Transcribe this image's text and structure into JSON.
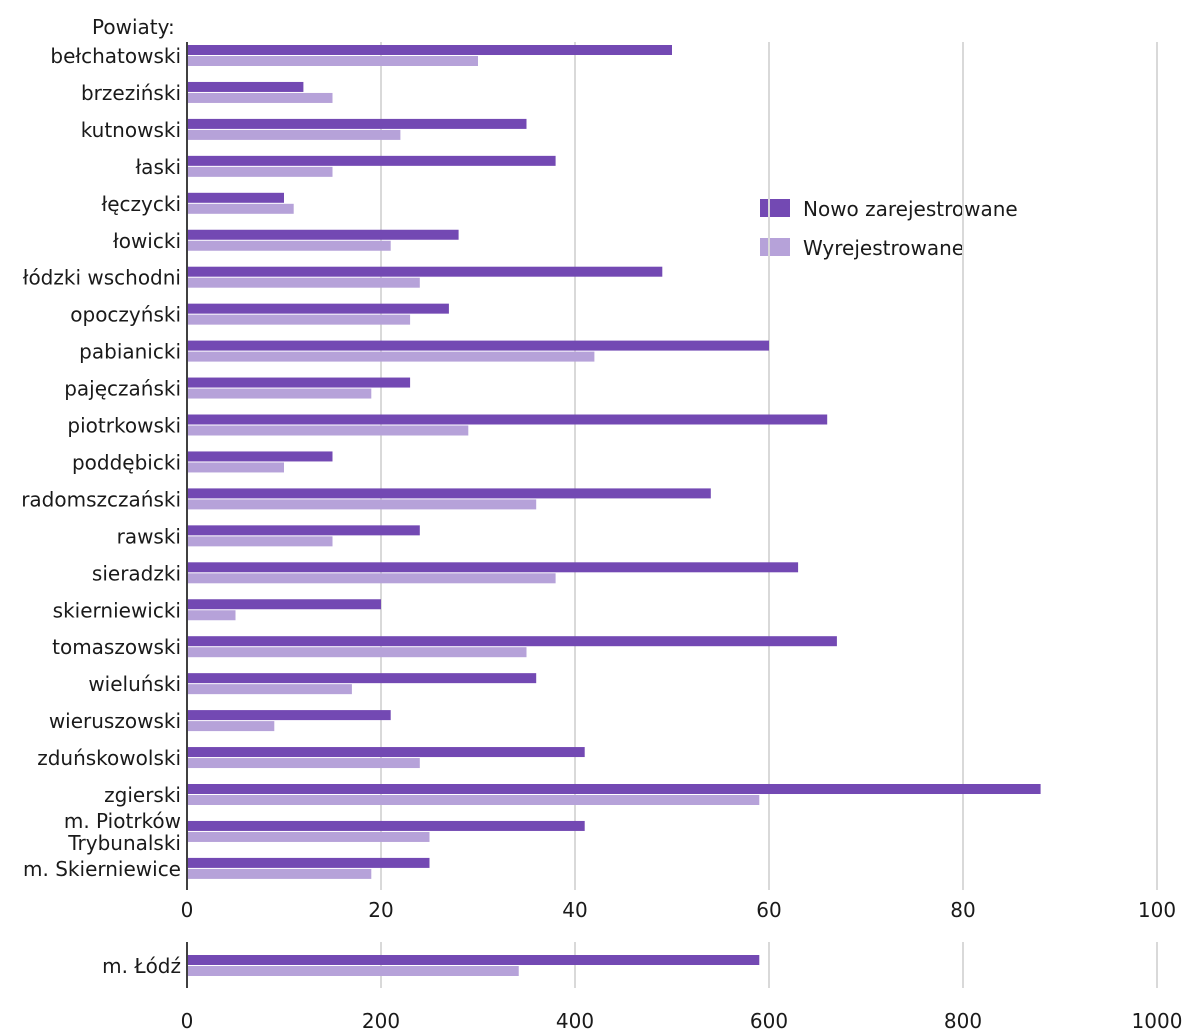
{
  "chart_data": [
    {
      "type": "bar",
      "orientation": "horizontal",
      "y_heading": "Powiaty:",
      "categories": [
        "bełchatowski",
        "brzeziński",
        "kutnowski",
        "łaski",
        "łęczycki",
        "łowicki",
        "łódzki wschodni",
        "opoczyński",
        "pabianicki",
        "pajęczański",
        "piotrkowski",
        "poddębicki",
        "radomszczański",
        "rawski",
        "sieradzki",
        "skierniewicki",
        "tomaszowski",
        "wieluński",
        "wieruszowski",
        "zduńskowolski",
        "zgierski",
        "m. Piotrków Trybunalski",
        "m. Skierniewice"
      ],
      "series": [
        {
          "name": "Nowo zarejestrowane",
          "color": "#7349b3",
          "values": [
            50,
            12,
            35,
            38,
            10,
            28,
            49,
            27,
            60,
            23,
            66,
            15,
            54,
            24,
            63,
            20,
            67,
            36,
            21,
            41,
            88,
            41,
            25
          ]
        },
        {
          "name": "Wyrejestrowane",
          "color": "#b6a2d9",
          "values": [
            30,
            15,
            22,
            15,
            11,
            21,
            24,
            23,
            42,
            19,
            29,
            10,
            36,
            15,
            38,
            5,
            35,
            17,
            9,
            24,
            59,
            25,
            19
          ]
        }
      ],
      "xlim": [
        0,
        100
      ],
      "xticks": [
        "0",
        "20",
        "40",
        "60",
        "80",
        "100"
      ],
      "grid": true,
      "legend_position": "right"
    },
    {
      "type": "bar",
      "orientation": "horizontal",
      "categories": [
        "m. Łódź"
      ],
      "series": [
        {
          "name": "Nowo zarejestrowane",
          "color": "#7349b3",
          "values": [
            590
          ]
        },
        {
          "name": "Wyrejestrowane",
          "color": "#b6a2d9",
          "values": [
            342
          ]
        }
      ],
      "xlim": [
        0,
        1000
      ],
      "xticks": [
        "0",
        "200",
        "400",
        "600",
        "800",
        "1000"
      ],
      "grid": true
    }
  ]
}
